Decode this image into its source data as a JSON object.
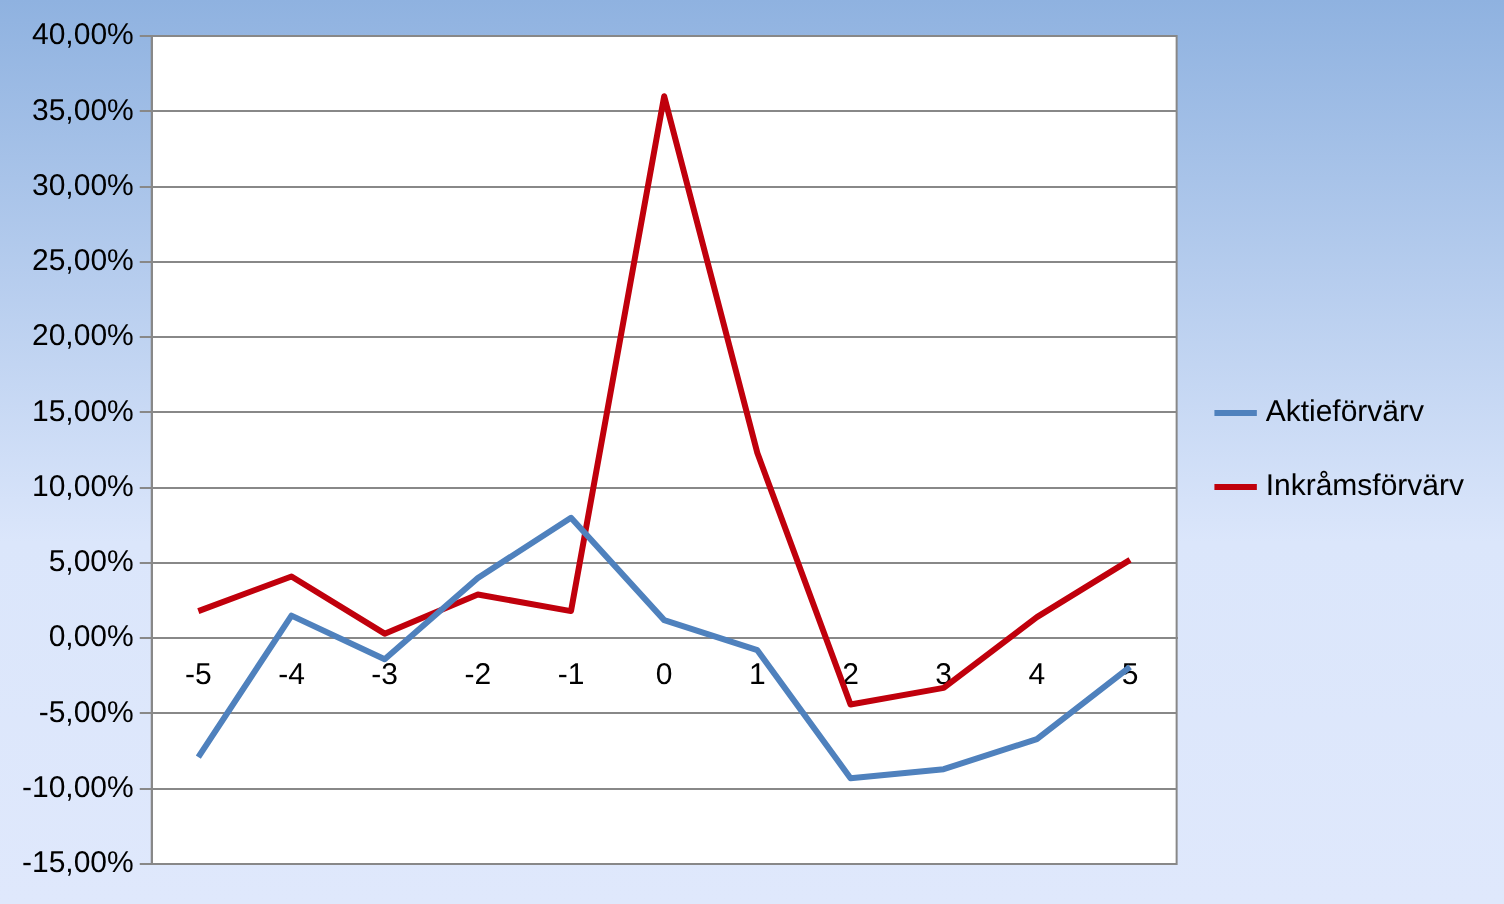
{
  "chart_data": {
    "type": "line",
    "categories": [
      "-5",
      "-4",
      "-3",
      "-2",
      "-1",
      "0",
      "1",
      "2",
      "3",
      "4",
      "5"
    ],
    "series": [
      {
        "name": "Aktieförvärv",
        "color": "#4f81bd",
        "values": [
          -7.9,
          1.5,
          -1.4,
          4.0,
          8.0,
          1.2,
          -0.8,
          -9.3,
          -8.7,
          -6.7,
          -1.9
        ]
      },
      {
        "name": "Inkråmsförvärv",
        "color": "#c0000c",
        "values": [
          1.8,
          4.1,
          0.3,
          2.9,
          1.8,
          36.0,
          12.3,
          -4.4,
          -3.3,
          1.4,
          5.2
        ]
      }
    ],
    "ylim": [
      -15,
      40
    ],
    "yticks": [
      {
        "value": -15,
        "label": "-15,00%"
      },
      {
        "value": -10,
        "label": "-10,00%"
      },
      {
        "value": -5,
        "label": "-5,00%"
      },
      {
        "value": 0,
        "label": "0,00%"
      },
      {
        "value": 5,
        "label": "5,00%"
      },
      {
        "value": 10,
        "label": "10,00%"
      },
      {
        "value": 15,
        "label": "15,00%"
      },
      {
        "value": 20,
        "label": "20,00%"
      },
      {
        "value": 25,
        "label": "25,00%"
      },
      {
        "value": 30,
        "label": "30,00%"
      },
      {
        "value": 35,
        "label": "35,00%"
      },
      {
        "value": 40,
        "label": "40,00%"
      }
    ],
    "grid": "y",
    "legend": "right",
    "marker": "none",
    "line_style": "solid"
  }
}
